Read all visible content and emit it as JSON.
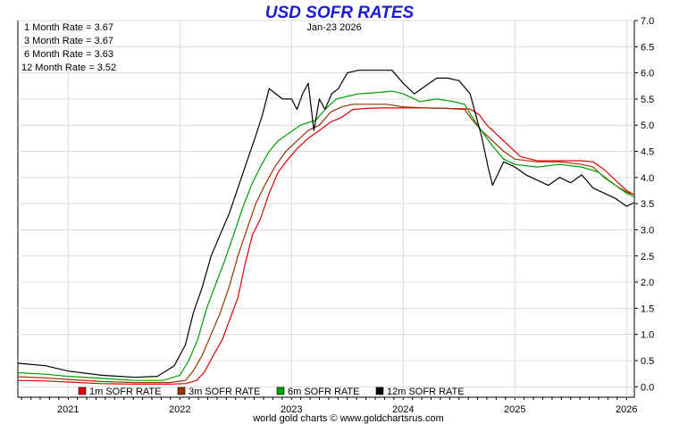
{
  "chart_data": {
    "type": "line",
    "title": "USD SOFR RATES",
    "title_color": "#1a1adb",
    "date_label": "Jan-23  2026",
    "footer": "world gold charts © www.goldchartsrus.com",
    "rate_summary": [
      "1 Month Rate = 3.67",
      "3 Month Rate = 3.67",
      "6 Month Rate = 3.63",
      "12 Month Rate = 3.52"
    ],
    "x_ticks": [
      "2021",
      "2022",
      "2023",
      "2024",
      "2025",
      "2026"
    ],
    "x_range": [
      2020.55,
      2026.07
    ],
    "y_ticks": [
      "0.0",
      "0.5",
      "1.0",
      "1.5",
      "2.0",
      "2.5",
      "3.0",
      "3.5",
      "4.0",
      "4.5",
      "5.0",
      "5.5",
      "6.0",
      "6.5",
      "7.0"
    ],
    "ylim": [
      -0.2,
      7.0
    ],
    "y_axis_side": "right",
    "grid": true,
    "legend_position": "bottom",
    "series": [
      {
        "name": "1m SOFR RATE",
        "color": "#e00000",
        "x": [
          2020.55,
          2020.8,
          2021.0,
          2021.3,
          2021.6,
          2021.9,
          2022.05,
          2022.15,
          2022.22,
          2022.3,
          2022.38,
          2022.45,
          2022.52,
          2022.58,
          2022.65,
          2022.72,
          2022.8,
          2022.88,
          2022.95,
          2023.05,
          2023.15,
          2023.25,
          2023.35,
          2023.45,
          2023.55,
          2023.65,
          2023.8,
          2024.0,
          2024.2,
          2024.4,
          2024.6,
          2024.68,
          2024.75,
          2024.85,
          2024.95,
          2025.05,
          2025.2,
          2025.4,
          2025.6,
          2025.7,
          2025.8,
          2025.9,
          2026.0,
          2026.07
        ],
        "y": [
          0.12,
          0.11,
          0.09,
          0.06,
          0.05,
          0.05,
          0.06,
          0.12,
          0.28,
          0.6,
          0.9,
          1.3,
          1.7,
          2.3,
          2.9,
          3.2,
          3.7,
          4.1,
          4.3,
          4.55,
          4.75,
          4.9,
          5.06,
          5.15,
          5.3,
          5.32,
          5.33,
          5.33,
          5.33,
          5.32,
          5.31,
          5.2,
          5.0,
          4.8,
          4.6,
          4.4,
          4.32,
          4.32,
          4.32,
          4.3,
          4.15,
          3.95,
          3.75,
          3.67
        ]
      },
      {
        "name": "3m SOFR RATE",
        "color": "#993300",
        "x": [
          2020.55,
          2020.8,
          2021.0,
          2021.3,
          2021.6,
          2021.9,
          2022.05,
          2022.12,
          2022.2,
          2022.28,
          2022.36,
          2022.44,
          2022.52,
          2022.6,
          2022.68,
          2022.76,
          2022.85,
          2022.95,
          2023.05,
          2023.15,
          2023.25,
          2023.35,
          2023.45,
          2023.55,
          2023.7,
          2023.85,
          2024.0,
          2024.2,
          2024.4,
          2024.55,
          2024.62,
          2024.7,
          2024.8,
          2024.9,
          2025.0,
          2025.2,
          2025.4,
          2025.6,
          2025.7,
          2025.8,
          2025.9,
          2026.0,
          2026.07
        ],
        "y": [
          0.19,
          0.17,
          0.14,
          0.1,
          0.08,
          0.08,
          0.12,
          0.3,
          0.6,
          1.0,
          1.4,
          1.9,
          2.5,
          3.0,
          3.5,
          3.85,
          4.2,
          4.5,
          4.7,
          4.9,
          5.0,
          5.25,
          5.35,
          5.4,
          5.4,
          5.4,
          5.35,
          5.33,
          5.32,
          5.3,
          5.1,
          4.9,
          4.7,
          4.5,
          4.35,
          4.3,
          4.3,
          4.25,
          4.2,
          4.0,
          3.85,
          3.72,
          3.67
        ]
      },
      {
        "name": "6m SOFR RATE",
        "color": "#00a000",
        "x": [
          2020.55,
          2020.8,
          2021.0,
          2021.3,
          2021.6,
          2021.85,
          2022.0,
          2022.08,
          2022.16,
          2022.24,
          2022.32,
          2022.4,
          2022.48,
          2022.56,
          2022.64,
          2022.72,
          2022.8,
          2022.88,
          2022.98,
          2023.08,
          2023.15,
          2023.22,
          2023.3,
          2023.4,
          2023.5,
          2023.6,
          2023.75,
          2023.9,
          2024.0,
          2024.15,
          2024.3,
          2024.45,
          2024.55,
          2024.62,
          2024.7,
          2024.8,
          2024.9,
          2025.0,
          2025.2,
          2025.4,
          2025.6,
          2025.75,
          2025.9,
          2026.0,
          2026.07
        ],
        "y": [
          0.27,
          0.24,
          0.2,
          0.16,
          0.12,
          0.12,
          0.22,
          0.5,
          0.9,
          1.5,
          1.95,
          2.4,
          2.9,
          3.4,
          3.85,
          4.2,
          4.5,
          4.7,
          4.85,
          5.0,
          5.05,
          5.1,
          5.3,
          5.5,
          5.55,
          5.6,
          5.62,
          5.65,
          5.6,
          5.45,
          5.5,
          5.45,
          5.4,
          5.15,
          4.9,
          4.6,
          4.35,
          4.25,
          4.2,
          4.25,
          4.2,
          4.1,
          3.85,
          3.7,
          3.63
        ]
      },
      {
        "name": "12m SOFR RATE",
        "color": "#000000",
        "x": [
          2020.55,
          2020.8,
          2021.0,
          2021.3,
          2021.6,
          2021.8,
          2021.95,
          2022.05,
          2022.12,
          2022.2,
          2022.28,
          2022.36,
          2022.44,
          2022.52,
          2022.6,
          2022.68,
          2022.74,
          2022.8,
          2022.86,
          2022.92,
          2023.0,
          2023.05,
          2023.1,
          2023.15,
          2023.2,
          2023.25,
          2023.3,
          2023.36,
          2023.42,
          2023.5,
          2023.6,
          2023.7,
          2023.8,
          2023.9,
          2024.0,
          2024.1,
          2024.2,
          2024.3,
          2024.4,
          2024.5,
          2024.6,
          2024.65,
          2024.7,
          2024.76,
          2024.8,
          2024.9,
          2025.0,
          2025.1,
          2025.2,
          2025.3,
          2025.4,
          2025.5,
          2025.6,
          2025.7,
          2025.8,
          2025.9,
          2026.0,
          2026.07
        ],
        "y": [
          0.45,
          0.4,
          0.3,
          0.22,
          0.18,
          0.2,
          0.4,
          0.8,
          1.4,
          1.9,
          2.5,
          2.9,
          3.3,
          3.8,
          4.3,
          4.8,
          5.2,
          5.7,
          5.6,
          5.5,
          5.5,
          5.3,
          5.6,
          5.8,
          4.9,
          5.5,
          5.3,
          5.6,
          5.7,
          6.0,
          6.05,
          6.05,
          6.05,
          6.05,
          5.8,
          5.6,
          5.75,
          5.9,
          5.9,
          5.85,
          5.6,
          5.2,
          4.8,
          4.2,
          3.85,
          4.3,
          4.2,
          4.05,
          3.95,
          3.85,
          4.0,
          3.9,
          4.05,
          3.8,
          3.7,
          3.6,
          3.45,
          3.52
        ]
      }
    ]
  }
}
